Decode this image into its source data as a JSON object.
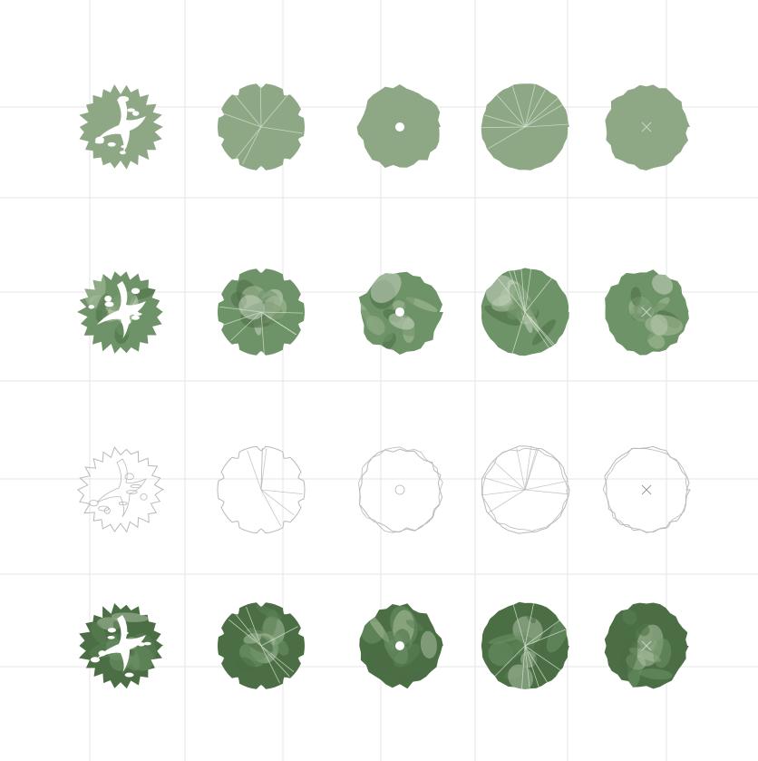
{
  "colors": {
    "grid_line": "#e6e6e6",
    "flat_fill": "#8ea886",
    "green_light": "#a9bf9f",
    "green_mid": "#6f9368",
    "green_dark": "#4b6e45",
    "outline": "#b9b9b9",
    "white": "#ffffff"
  },
  "rows": [
    {
      "style": "flat",
      "trees": [
        {
          "icon": "leafy-tree-icon"
        },
        {
          "icon": "notched-tree-icon"
        },
        {
          "icon": "dot-tree-icon"
        },
        {
          "icon": "radial-tree-icon"
        },
        {
          "icon": "cross-tree-icon"
        }
      ]
    },
    {
      "style": "watercolor",
      "trees": [
        {
          "icon": "leafy-tree-icon"
        },
        {
          "icon": "notched-tree-icon"
        },
        {
          "icon": "dot-tree-icon"
        },
        {
          "icon": "radial-tree-icon"
        },
        {
          "icon": "cross-tree-icon"
        }
      ]
    },
    {
      "style": "outline",
      "trees": [
        {
          "icon": "leafy-tree-icon"
        },
        {
          "icon": "notched-tree-icon"
        },
        {
          "icon": "dot-tree-icon"
        },
        {
          "icon": "radial-tree-icon"
        },
        {
          "icon": "cross-tree-icon"
        }
      ]
    },
    {
      "style": "watercolor-dark",
      "trees": [
        {
          "icon": "leafy-tree-icon"
        },
        {
          "icon": "notched-tree-icon"
        },
        {
          "icon": "dot-tree-icon"
        },
        {
          "icon": "radial-tree-icon"
        },
        {
          "icon": "cross-tree-icon"
        }
      ]
    }
  ]
}
